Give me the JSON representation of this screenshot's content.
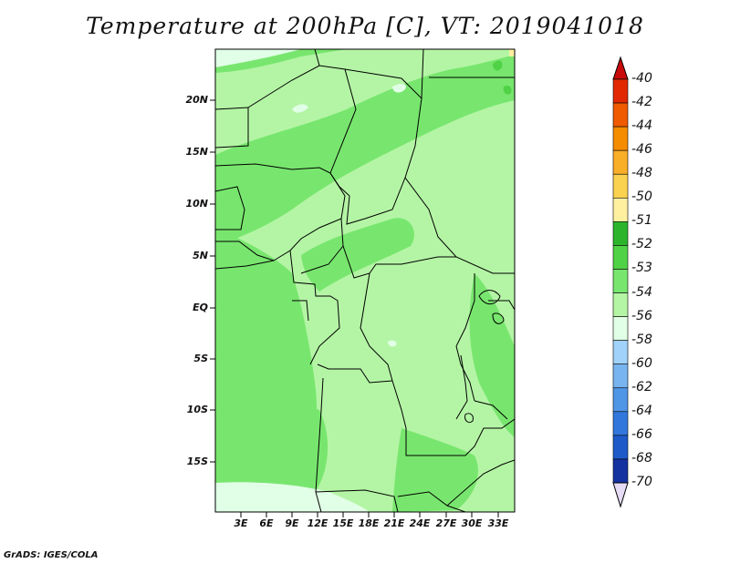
{
  "title": "Temperature at 200hPa [C], VT: 2019041018",
  "credit": "GrADS: IGES/COLA",
  "map": {
    "lat_labels": [
      "20N",
      "15N",
      "10N",
      "5N",
      "EQ",
      "5S",
      "10S",
      "15S"
    ],
    "lon_labels": [
      "3E",
      "6E",
      "9E",
      "12E",
      "15E",
      "18E",
      "21E",
      "24E",
      "27E",
      "30E",
      "33E"
    ],
    "fill_colors": {
      "dominant": "#b4f5a5",
      "medium": "#78e66e",
      "pale": "#e1ffe6"
    }
  },
  "colorbar": {
    "labels": [
      "-40",
      "-42",
      "-44",
      "-46",
      "-48",
      "-50",
      "-51",
      "-52",
      "-53",
      "-54",
      "-56",
      "-58",
      "-60",
      "-62",
      "-64",
      "-66",
      "-68",
      "-70"
    ],
    "colors": [
      "#e12800",
      "#f05a00",
      "#f58c00",
      "#faaf28",
      "#fad250",
      "#fff0a0",
      "#2db42d",
      "#50d246",
      "#78e66e",
      "#b4f5a5",
      "#e1ffe6",
      "#a0d2fa",
      "#78b4f0",
      "#5096e6",
      "#3278dc",
      "#1e5ac8",
      "#1432a0",
      "#0a1464"
    ],
    "top_arrow_color": "#c80a0a",
    "bottom_arrow_color": "#e6dcf5"
  }
}
